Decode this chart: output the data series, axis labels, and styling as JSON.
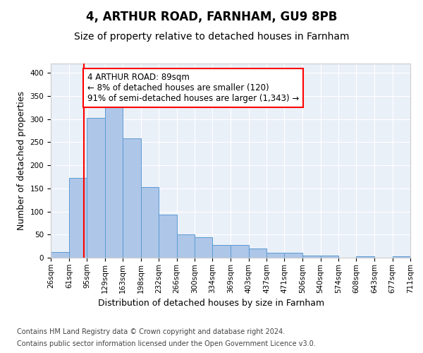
{
  "title": "4, ARTHUR ROAD, FARNHAM, GU9 8PB",
  "subtitle": "Size of property relative to detached houses in Farnham",
  "xlabel": "Distribution of detached houses by size in Farnham",
  "ylabel": "Number of detached properties",
  "bar_color": "#aec6e8",
  "bar_edge_color": "#5b9bd5",
  "bin_labels": [
    "26sqm",
    "61sqm",
    "95sqm",
    "129sqm",
    "163sqm",
    "198sqm",
    "232sqm",
    "266sqm",
    "300sqm",
    "334sqm",
    "369sqm",
    "403sqm",
    "437sqm",
    "471sqm",
    "506sqm",
    "540sqm",
    "574sqm",
    "608sqm",
    "643sqm",
    "677sqm",
    "711sqm"
  ],
  "bar_values": [
    12,
    172,
    302,
    328,
    258,
    153,
    93,
    50,
    44,
    28,
    28,
    20,
    10,
    10,
    5,
    5,
    0,
    3,
    0,
    3
  ],
  "bin_edges": [
    26,
    61,
    95,
    129,
    163,
    198,
    232,
    266,
    300,
    334,
    369,
    403,
    437,
    471,
    506,
    540,
    574,
    608,
    643,
    677,
    711
  ],
  "red_line_x": 89,
  "annotation_text": "4 ARTHUR ROAD: 89sqm\n← 8% of detached houses are smaller (120)\n91% of semi-detached houses are larger (1,343) →",
  "annotation_box_color": "white",
  "annotation_box_edge_color": "red",
  "ylim": [
    0,
    420
  ],
  "yticks": [
    0,
    50,
    100,
    150,
    200,
    250,
    300,
    350,
    400
  ],
  "background_color": "#eaf0f8",
  "plot_bg_color": "#eaf0f8",
  "footer_line1": "Contains HM Land Registry data © Crown copyright and database right 2024.",
  "footer_line2": "Contains public sector information licensed under the Open Government Licence v3.0.",
  "grid_color": "white",
  "title_fontsize": 12,
  "subtitle_fontsize": 10,
  "axis_label_fontsize": 9,
  "tick_fontsize": 7.5,
  "annotation_fontsize": 8.5,
  "footer_fontsize": 7
}
